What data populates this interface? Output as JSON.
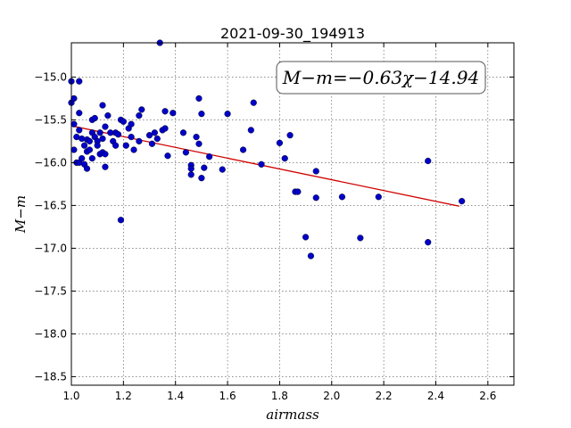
{
  "chart_data": {
    "type": "scatter",
    "title": "2021-09-30_194913",
    "xlabel": "airmass",
    "ylabel": "M−m",
    "xlim": [
      1.0,
      2.7
    ],
    "ylim": [
      -18.6,
      -14.6
    ],
    "ylim_note": "y axis inverted (more negative downward)",
    "grid": true,
    "xticks": [
      1.0,
      1.2,
      1.4,
      1.6,
      1.8,
      2.0,
      2.2,
      2.4,
      2.6
    ],
    "yticks": [
      -15.0,
      -15.5,
      -16.0,
      -16.5,
      -17.0,
      -17.5,
      -18.0,
      -18.5
    ],
    "xtick_labels": [
      "1.0",
      "1.2",
      "1.4",
      "1.6",
      "1.8",
      "2.0",
      "2.2",
      "2.4",
      "2.6"
    ],
    "ytick_labels": [
      "−15.0",
      "−15.5",
      "−16.0",
      "−16.5",
      "−17.0",
      "−17.5",
      "−18.0",
      "−18.5"
    ],
    "annotation": "M−m=−0.63χ−14.94",
    "fit": {
      "slope": -0.63,
      "intercept": -14.94,
      "x_range": [
        1.0,
        2.49
      ],
      "color": "#d00000"
    },
    "point_color": "#0000c8",
    "series": [
      {
        "points": [
          [
            1.0,
            -15.05
          ],
          [
            1.0,
            -15.3
          ],
          [
            1.01,
            -15.25
          ],
          [
            1.01,
            -15.55
          ],
          [
            1.01,
            -15.85
          ],
          [
            1.02,
            -15.7
          ],
          [
            1.02,
            -16.0
          ],
          [
            1.03,
            -15.05
          ],
          [
            1.03,
            -15.42
          ],
          [
            1.03,
            -15.62
          ],
          [
            1.03,
            -16.0
          ],
          [
            1.04,
            -15.72
          ],
          [
            1.04,
            -15.95
          ],
          [
            1.05,
            -15.8
          ],
          [
            1.05,
            -16.02
          ],
          [
            1.06,
            -15.73
          ],
          [
            1.06,
            -15.87
          ],
          [
            1.06,
            -16.07
          ],
          [
            1.07,
            -15.75
          ],
          [
            1.07,
            -15.85
          ],
          [
            1.08,
            -15.5
          ],
          [
            1.08,
            -15.65
          ],
          [
            1.08,
            -15.95
          ],
          [
            1.09,
            -15.48
          ],
          [
            1.09,
            -15.7
          ],
          [
            1.1,
            -15.75
          ],
          [
            1.1,
            -15.8
          ],
          [
            1.11,
            -15.65
          ],
          [
            1.11,
            -15.9
          ],
          [
            1.12,
            -15.33
          ],
          [
            1.12,
            -15.72
          ],
          [
            1.12,
            -15.88
          ],
          [
            1.13,
            -16.05
          ],
          [
            1.13,
            -15.9
          ],
          [
            1.13,
            -15.58
          ],
          [
            1.14,
            -15.45
          ],
          [
            1.15,
            -15.65
          ],
          [
            1.16,
            -15.75
          ],
          [
            1.17,
            -15.65
          ],
          [
            1.17,
            -15.8
          ],
          [
            1.18,
            -15.67
          ],
          [
            1.19,
            -15.5
          ],
          [
            1.19,
            -16.67
          ],
          [
            1.2,
            -15.52
          ],
          [
            1.21,
            -15.8
          ],
          [
            1.22,
            -15.6
          ],
          [
            1.23,
            -15.55
          ],
          [
            1.23,
            -15.7
          ],
          [
            1.24,
            -15.85
          ],
          [
            1.26,
            -15.45
          ],
          [
            1.26,
            -15.75
          ],
          [
            1.27,
            -15.38
          ],
          [
            1.3,
            -15.68
          ],
          [
            1.31,
            -15.78
          ],
          [
            1.32,
            -15.65
          ],
          [
            1.33,
            -15.72
          ],
          [
            1.34,
            -14.6
          ],
          [
            1.35,
            -15.62
          ],
          [
            1.36,
            -15.4
          ],
          [
            1.36,
            -15.6
          ],
          [
            1.37,
            -15.92
          ],
          [
            1.39,
            -15.42
          ],
          [
            1.43,
            -15.65
          ],
          [
            1.44,
            -15.88
          ],
          [
            1.46,
            -16.03
          ],
          [
            1.46,
            -16.07
          ],
          [
            1.46,
            -16.14
          ],
          [
            1.48,
            -15.7
          ],
          [
            1.49,
            -15.25
          ],
          [
            1.49,
            -15.78
          ],
          [
            1.5,
            -15.43
          ],
          [
            1.5,
            -16.18
          ],
          [
            1.51,
            -16.06
          ],
          [
            1.53,
            -15.93
          ],
          [
            1.58,
            -16.08
          ],
          [
            1.6,
            -15.43
          ],
          [
            1.66,
            -15.85
          ],
          [
            1.69,
            -15.62
          ],
          [
            1.7,
            -15.3
          ],
          [
            1.73,
            -16.02
          ],
          [
            1.8,
            -15.77
          ],
          [
            1.82,
            -15.95
          ],
          [
            1.84,
            -15.68
          ],
          [
            1.86,
            -16.34
          ],
          [
            1.87,
            -16.34
          ],
          [
            1.9,
            -16.87
          ],
          [
            1.92,
            -17.09
          ],
          [
            1.94,
            -16.1
          ],
          [
            1.94,
            -16.41
          ],
          [
            2.04,
            -16.4
          ],
          [
            2.11,
            -16.88
          ],
          [
            2.18,
            -16.4
          ],
          [
            2.37,
            -15.98
          ],
          [
            2.37,
            -16.93
          ],
          [
            2.5,
            -16.45
          ]
        ]
      }
    ]
  }
}
